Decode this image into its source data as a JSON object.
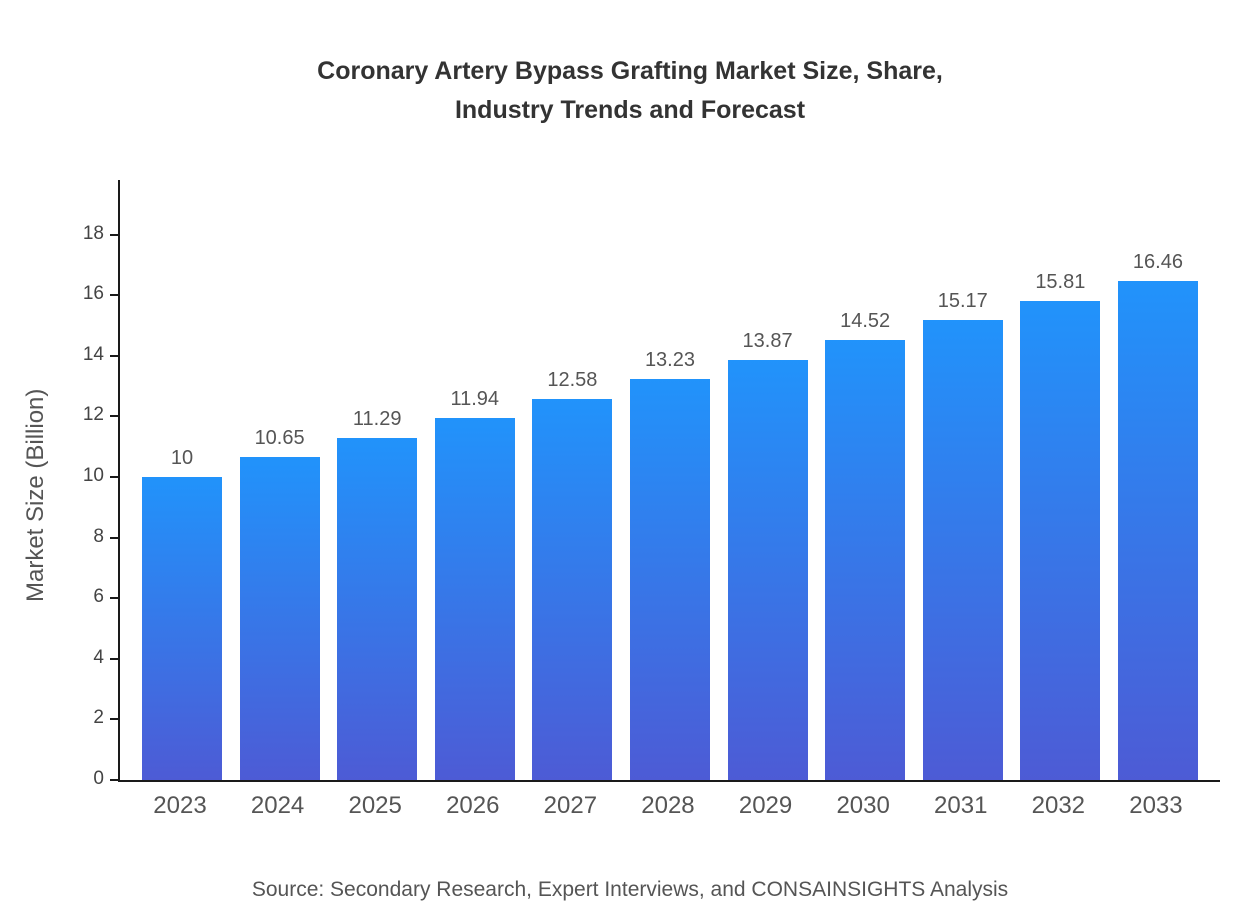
{
  "chart_data": {
    "type": "bar",
    "title": "Coronary Artery Bypass Grafting Market Size, Share,\nIndustry Trends and Forecast",
    "ylabel": "Market Size (Billion)",
    "categories": [
      "2023",
      "2024",
      "2025",
      "2026",
      "2027",
      "2028",
      "2029",
      "2030",
      "2031",
      "2032",
      "2033"
    ],
    "values": [
      10,
      10.65,
      11.29,
      11.94,
      12.58,
      13.23,
      13.87,
      14.52,
      15.17,
      15.81,
      16.46
    ],
    "value_labels": [
      "10",
      "10.65",
      "11.29",
      "11.94",
      "12.58",
      "13.23",
      "13.87",
      "14.52",
      "15.17",
      "15.81",
      "16.46"
    ],
    "ylim": [
      0,
      18
    ],
    "ytick_step": 2,
    "axis_top_units": 19.8,
    "grid": false,
    "legend": "none",
    "bar_gradient_top": "#2193fb",
    "bar_gradient_bottom": "#4d5bd5",
    "source": "Source: Secondary Research, Expert Interviews, and CONSAINSIGHTS Analysis"
  }
}
